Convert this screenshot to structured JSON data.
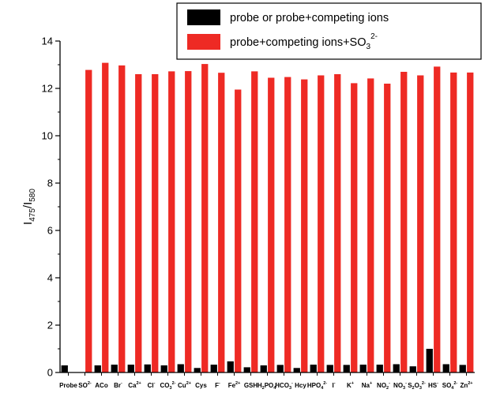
{
  "chart_data": {
    "type": "bar",
    "ylabel": {
      "main": "I",
      "sub1": "475",
      "sep": "/I",
      "sub2": "580"
    },
    "ylim": [
      0,
      14
    ],
    "yticks": [
      "0",
      "2",
      "4",
      "6",
      "8",
      "10",
      "12",
      "14"
    ],
    "legend": {
      "placement": "top-right",
      "items": [
        {
          "text": "probe or probe+competing ions",
          "color": "#000000"
        },
        {
          "text": "probe+competing ions+SO",
          "sub": "3",
          "sup": "2-",
          "color": "#ee2a24"
        }
      ]
    },
    "categories": [
      {
        "base": "Probe",
        "sup": "",
        "sub": ""
      },
      {
        "base": "SO",
        "sup": "2-",
        "sub": ""
      },
      {
        "base": "ACo",
        "sup": "",
        "sub": ""
      },
      {
        "base": "Br",
        "sup": "-",
        "sub": ""
      },
      {
        "base": "Ca",
        "sup": "2+",
        "sub": ""
      },
      {
        "base": "Cl",
        "sup": "-",
        "sub": ""
      },
      {
        "base": "CO",
        "sup": "2-",
        "sub": "3"
      },
      {
        "base": "Cu",
        "sup": "2+",
        "sub": ""
      },
      {
        "base": "Cys",
        "sup": "",
        "sub": ""
      },
      {
        "base": "F",
        "sup": "-",
        "sub": ""
      },
      {
        "base": "Fe",
        "sup": "2+",
        "sub": ""
      },
      {
        "base": "GSH",
        "sup": "",
        "sub": ""
      },
      {
        "base": "H",
        "sup": "",
        "sub": "2",
        "extra": "PO",
        "sup2": "-",
        "sub2": "4"
      },
      {
        "base": "HCO",
        "sup": "-",
        "sub": "3"
      },
      {
        "base": "Hcy",
        "sup": "",
        "sub": ""
      },
      {
        "base": "HPO",
        "sup": "2-",
        "sub": "4"
      },
      {
        "base": "I",
        "sup": "-",
        "sub": ""
      },
      {
        "base": "K",
        "sup": "+",
        "sub": ""
      },
      {
        "base": "Na",
        "sup": "+",
        "sub": ""
      },
      {
        "base": "NO",
        "sup": "-",
        "sub": "2"
      },
      {
        "base": "NO",
        "sup": "-",
        "sub": "3"
      },
      {
        "base": "S",
        "sup": "",
        "sub": "2",
        "extra": "O",
        "sup2": "2-",
        "sub2": "3"
      },
      {
        "base": "HS",
        "sup": "-",
        "sub": ""
      },
      {
        "base": "SO",
        "sup": "2-",
        "sub": "4"
      },
      {
        "base": "Zn",
        "sup": "2+",
        "sub": ""
      }
    ],
    "series": [
      {
        "name": "probe or probe+competing ions",
        "color": "#000000",
        "values": [
          0.3,
          0.0,
          0.3,
          0.33,
          0.33,
          0.34,
          0.3,
          0.35,
          0.19,
          0.33,
          0.47,
          0.22,
          0.3,
          0.32,
          0.19,
          0.33,
          0.32,
          0.32,
          0.33,
          0.33,
          0.35,
          0.26,
          1.0,
          0.35,
          0.32
        ]
      },
      {
        "name": "probe+competing ions+SO3 2-",
        "color": "#ee2a24",
        "values": [
          null,
          12.78,
          13.08,
          12.97,
          12.6,
          12.6,
          12.72,
          12.73,
          13.03,
          12.66,
          11.95,
          12.72,
          12.45,
          12.48,
          12.38,
          12.55,
          12.6,
          12.22,
          12.42,
          12.2,
          12.7,
          12.55,
          12.92,
          12.67,
          12.67
        ]
      }
    ]
  }
}
